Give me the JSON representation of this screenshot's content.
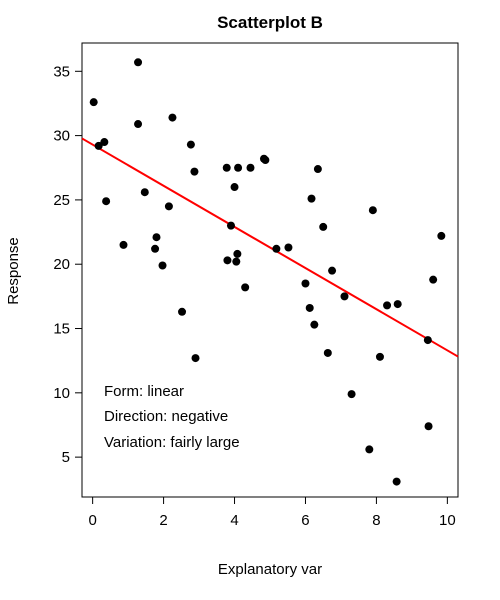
{
  "chart_data": {
    "type": "scatter",
    "title": "Scatterplot B",
    "xlabel": "Explanatory var",
    "ylabel": "Response",
    "xlim": [
      -0.3,
      10.3
    ],
    "ylim": [
      1.9,
      37.2
    ],
    "xticks": [
      0,
      2,
      4,
      6,
      8,
      10
    ],
    "yticks": [
      5,
      10,
      15,
      20,
      25,
      30,
      35
    ],
    "grid": false,
    "legend": "none",
    "colors": {
      "points": "#000000",
      "fit_line": "#ff0000",
      "frame": "#000000"
    },
    "series": [
      {
        "x": [
          0.03,
          0.17,
          0.33,
          0.38,
          0.87,
          1.28,
          1.28,
          1.47,
          1.76,
          1.8,
          1.97,
          2.15,
          2.25,
          2.52,
          2.77,
          2.87,
          2.9,
          3.78,
          3.8,
          3.9,
          4.0,
          4.05,
          4.08,
          4.1,
          4.3,
          4.45,
          4.83,
          4.87,
          5.18,
          5.52,
          6.0,
          6.12,
          6.17,
          6.25,
          6.35,
          6.5,
          6.63,
          6.75,
          7.1,
          7.3,
          7.8,
          7.9,
          8.1,
          8.3,
          8.6,
          8.57,
          9.45,
          9.47,
          9.6,
          9.83
        ],
        "y": [
          32.6,
          29.2,
          29.5,
          24.9,
          21.5,
          35.7,
          30.9,
          25.6,
          21.2,
          22.1,
          19.9,
          24.5,
          31.4,
          16.3,
          29.3,
          27.2,
          12.7,
          27.5,
          20.3,
          23.0,
          26.0,
          20.2,
          20.8,
          27.5,
          18.2,
          27.5,
          28.2,
          28.1,
          21.2,
          21.3,
          18.5,
          16.6,
          25.1,
          15.3,
          27.4,
          22.9,
          13.1,
          19.5,
          17.5,
          9.9,
          5.6,
          24.2,
          12.8,
          16.8,
          16.9,
          3.1,
          14.1,
          7.4,
          18.8,
          22.2
        ]
      }
    ],
    "fit_line": {
      "intercept": 29.3,
      "slope": -1.6
    },
    "annotations": [
      "Form: linear",
      "Direction: negative",
      "Variation: fairly large"
    ]
  }
}
